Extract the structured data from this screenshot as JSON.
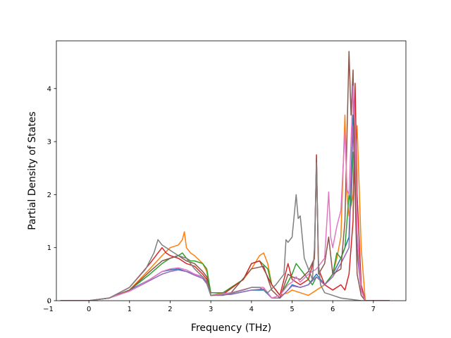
{
  "chart_data": {
    "type": "line",
    "title": "",
    "xlabel": "Frequency (THz)",
    "ylabel": "Partial Density of States",
    "xlim": [
      -0.8,
      7.8
    ],
    "ylim": [
      0,
      4.9
    ],
    "xticks": [
      -1,
      0,
      1,
      2,
      3,
      4,
      5,
      6,
      7
    ],
    "xtick_labels": [
      "−1",
      "0",
      "1",
      "2",
      "3",
      "4",
      "5",
      "6",
      "7"
    ],
    "yticks": [
      0,
      1,
      2,
      3,
      4
    ],
    "ytick_labels": [
      "0",
      "1",
      "2",
      "3",
      "4"
    ],
    "grid": false,
    "legend": "none",
    "series": [
      {
        "color": "#1f77b4",
        "x": [
          -0.7,
          0,
          0.5,
          1,
          1.5,
          1.8,
          2,
          2.2,
          2.4,
          2.6,
          2.8,
          2.9,
          3,
          3.5,
          4,
          4.3,
          4.5,
          4.7,
          4.9,
          5,
          5.2,
          5.4,
          5.6,
          5.8,
          6,
          6.2,
          6.4,
          6.5,
          6.6,
          6.7,
          6.8,
          7.4
        ],
        "y": [
          0,
          0,
          0.05,
          0.2,
          0.4,
          0.55,
          0.58,
          0.6,
          0.55,
          0.5,
          0.45,
          0.35,
          0.1,
          0.12,
          0.2,
          0.2,
          0.05,
          0.05,
          0.2,
          0.3,
          0.25,
          0.3,
          0.5,
          0.3,
          0.5,
          0.8,
          1.2,
          3.5,
          1.0,
          0.2,
          0,
          0
        ]
      },
      {
        "color": "#ff7f0e",
        "x": [
          -0.7,
          0,
          0.5,
          1,
          1.5,
          1.8,
          2,
          2.2,
          2.3,
          2.35,
          2.4,
          2.5,
          2.6,
          2.8,
          2.9,
          3,
          3.3,
          3.8,
          4,
          4.2,
          4.3,
          4.4,
          4.5,
          4.7,
          4.9,
          5,
          5.2,
          5.4,
          5.6,
          5.8,
          6,
          6.1,
          6.2,
          6.3,
          6.35,
          6.4,
          6.5,
          6.6,
          6.7,
          6.8,
          7.4
        ],
        "y": [
          0,
          0,
          0.05,
          0.2,
          0.6,
          0.85,
          1.0,
          1.05,
          1.15,
          1.3,
          1.0,
          0.9,
          0.85,
          0.7,
          0.55,
          0.1,
          0.15,
          0.4,
          0.6,
          0.85,
          0.9,
          0.7,
          0.3,
          0.1,
          0.15,
          0.2,
          0.15,
          0.1,
          0.2,
          0.3,
          0.5,
          0.8,
          1.2,
          3.5,
          2.0,
          1.6,
          2.0,
          3.3,
          1.0,
          0,
          0
        ]
      },
      {
        "color": "#2ca02c",
        "x": [
          -0.7,
          0,
          0.5,
          1,
          1.5,
          1.8,
          2,
          2.2,
          2.3,
          2.4,
          2.5,
          2.6,
          2.8,
          2.9,
          3,
          3.3,
          3.8,
          4,
          4.2,
          4.4,
          4.5,
          4.7,
          4.9,
          5,
          5.1,
          5.2,
          5.4,
          5.5,
          5.6,
          5.8,
          6,
          6.1,
          6.2,
          6.3,
          6.4,
          6.45,
          6.5,
          6.55,
          6.6,
          6.7,
          6.8,
          7.4
        ],
        "y": [
          0,
          0,
          0.05,
          0.2,
          0.5,
          0.7,
          0.8,
          0.85,
          0.9,
          0.8,
          0.75,
          0.75,
          0.7,
          0.6,
          0.15,
          0.15,
          0.4,
          0.7,
          0.75,
          0.6,
          0.3,
          0.1,
          0.35,
          0.5,
          0.7,
          0.6,
          0.4,
          0.3,
          0.45,
          0.3,
          0.5,
          0.9,
          0.8,
          1.0,
          2.0,
          1.8,
          2.8,
          2.6,
          1.0,
          0.2,
          0,
          0
        ]
      },
      {
        "color": "#d62728",
        "x": [
          -0.7,
          0,
          0.5,
          1,
          1.5,
          1.7,
          1.8,
          1.9,
          2,
          2.2,
          2.4,
          2.6,
          2.8,
          2.9,
          3,
          3.3,
          3.8,
          4,
          4.2,
          4.3,
          4.5,
          4.7,
          4.9,
          5,
          5.2,
          5.4,
          5.55,
          5.6,
          5.65,
          5.8,
          6,
          6.2,
          6.3,
          6.4,
          6.5,
          6.55,
          6.6,
          6.7,
          6.8,
          7.4
        ],
        "y": [
          0,
          0,
          0.05,
          0.25,
          0.7,
          0.9,
          1.0,
          0.9,
          0.85,
          0.8,
          0.7,
          0.65,
          0.5,
          0.4,
          0.1,
          0.12,
          0.4,
          0.7,
          0.75,
          0.6,
          0.3,
          0.1,
          0.7,
          0.4,
          0.3,
          0.4,
          0.8,
          2.75,
          0.6,
          0.3,
          0.2,
          0.3,
          0.2,
          0.5,
          1.5,
          4.1,
          2.0,
          0.3,
          0,
          0
        ]
      },
      {
        "color": "#9467bd",
        "x": [
          -0.7,
          0,
          0.5,
          1,
          1.5,
          1.8,
          2,
          2.2,
          2.4,
          2.6,
          2.8,
          2.9,
          3,
          3.5,
          4,
          4.3,
          4.5,
          4.7,
          4.9,
          5,
          5.2,
          5.4,
          5.6,
          5.8,
          6,
          6.2,
          6.4,
          6.5,
          6.6,
          6.7,
          6.8,
          7.4
        ],
        "y": [
          0,
          0,
          0.05,
          0.18,
          0.38,
          0.5,
          0.55,
          0.58,
          0.55,
          0.48,
          0.42,
          0.32,
          0.1,
          0.12,
          0.2,
          0.22,
          0.05,
          0.05,
          0.2,
          0.28,
          0.25,
          0.3,
          0.45,
          0.3,
          0.45,
          0.7,
          1.0,
          3.3,
          0.9,
          0.2,
          0,
          0
        ]
      },
      {
        "color": "#8c564b",
        "x": [
          -0.7,
          0,
          0.5,
          1,
          1.5,
          1.8,
          2,
          2.2,
          2.4,
          2.6,
          2.8,
          2.9,
          3,
          3.5,
          4,
          4.3,
          4.5,
          4.7,
          4.9,
          5,
          5.2,
          5.4,
          5.55,
          5.6,
          5.65,
          5.8,
          5.9,
          6,
          6.2,
          6.3,
          6.4,
          6.45,
          6.5,
          6.55,
          6.6,
          6.7,
          6.8,
          7.4
        ],
        "y": [
          0,
          0,
          0.05,
          0.2,
          0.55,
          0.75,
          0.8,
          0.85,
          0.75,
          0.7,
          0.55,
          0.45,
          0.1,
          0.15,
          0.6,
          0.65,
          0.2,
          0.05,
          0.5,
          0.45,
          0.4,
          0.55,
          0.8,
          2.7,
          0.5,
          0.7,
          1.2,
          0.5,
          0.6,
          1.5,
          4.7,
          3.5,
          4.35,
          2.0,
          0.5,
          0.1,
          0,
          0
        ]
      },
      {
        "color": "#e377c2",
        "x": [
          -0.7,
          0,
          0.5,
          1,
          1.5,
          1.8,
          2,
          2.2,
          2.4,
          2.6,
          2.8,
          2.9,
          3,
          3.5,
          4,
          4.3,
          4.5,
          4.7,
          4.9,
          5,
          5.1,
          5.2,
          5.4,
          5.6,
          5.8,
          5.9,
          5.95,
          6,
          6.1,
          6.2,
          6.3,
          6.35,
          6.4,
          6.5,
          6.55,
          6.6,
          6.7,
          6.8,
          7.4
        ],
        "y": [
          0,
          0,
          0.05,
          0.18,
          0.4,
          0.55,
          0.6,
          0.62,
          0.58,
          0.5,
          0.45,
          0.35,
          0.1,
          0.15,
          0.25,
          0.25,
          0.05,
          0.1,
          0.3,
          0.35,
          0.45,
          0.35,
          0.5,
          0.6,
          0.8,
          2.05,
          1.2,
          1.0,
          1.4,
          1.7,
          3.2,
          2.1,
          2.0,
          4.05,
          3.3,
          1.3,
          0.2,
          0,
          0
        ]
      },
      {
        "color": "#7f7f7f",
        "x": [
          -0.7,
          0,
          0.5,
          1,
          1.4,
          1.6,
          1.7,
          1.8,
          2,
          2.2,
          2.4,
          2.6,
          2.8,
          2.9,
          3,
          3.3,
          3.8,
          4,
          4.2,
          4.4,
          4.6,
          4.8,
          4.85,
          4.9,
          5,
          5.05,
          5.1,
          5.15,
          5.2,
          5.3,
          5.4,
          5.5,
          5.55,
          5.6,
          5.65,
          5.7,
          5.8,
          6,
          6.2,
          6.4,
          6.5,
          6.6,
          6.7,
          6.8,
          7.4
        ],
        "y": [
          0,
          0,
          0.05,
          0.25,
          0.6,
          0.9,
          1.15,
          1.05,
          0.95,
          0.85,
          0.8,
          0.6,
          0.45,
          0.35,
          0.1,
          0.1,
          0.2,
          0.25,
          0.25,
          0.15,
          0.3,
          0.5,
          1.15,
          1.1,
          1.2,
          1.6,
          2.0,
          1.55,
          1.6,
          0.8,
          0.6,
          0.4,
          1.0,
          2.6,
          0.7,
          0.3,
          0.15,
          0.1,
          0.05,
          0.03,
          0.02,
          0.01,
          0,
          0,
          0
        ]
      }
    ]
  }
}
